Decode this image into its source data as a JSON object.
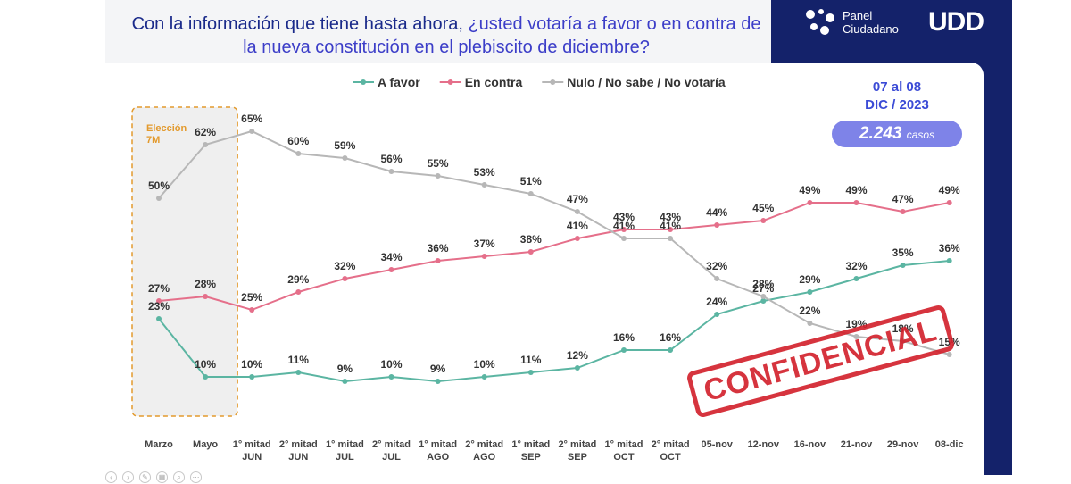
{
  "title_part1": "Con la información que tiene hasta ahora, ",
  "title_part2": "¿usted votaría a favor o en contra de la nueva constitución en el plebiscito de diciembre?",
  "logo": {
    "line1": "Panel",
    "line2": "Ciudadano",
    "mark": "UDD"
  },
  "date_range": {
    "line1": "07 al 08",
    "line2": "DIC / 2023"
  },
  "cases": {
    "value": "2.243",
    "unit": "casos"
  },
  "stamp": "CONFIDENCIAL",
  "chart_data": {
    "type": "line",
    "title": "Con la información que tiene hasta ahora, ¿usted votaría a favor o en contra de la nueva constitución en el plebiscito de diciembre?",
    "categories": [
      [
        "Marzo"
      ],
      [
        "Mayo"
      ],
      [
        "1° mitad",
        "JUN"
      ],
      [
        "2° mitad",
        "JUN"
      ],
      [
        "1° mitad",
        "JUL"
      ],
      [
        "2° mitad",
        "JUL"
      ],
      [
        "1° mitad",
        "AGO"
      ],
      [
        "2° mitad",
        "AGO"
      ],
      [
        "1° mitad",
        "SEP"
      ],
      [
        "2° mitad",
        "SEP"
      ],
      [
        "1° mitad",
        "OCT"
      ],
      [
        "2° mitad",
        "OCT"
      ],
      [
        "05-nov"
      ],
      [
        "12-nov"
      ],
      [
        "16-nov"
      ],
      [
        "21-nov"
      ],
      [
        "29-nov"
      ],
      [
        "08-dic"
      ]
    ],
    "series": [
      {
        "name": "A favor",
        "color": "#5bb5a2",
        "values": [
          23,
          10,
          10,
          11,
          9,
          10,
          9,
          10,
          11,
          12,
          16,
          16,
          24,
          27,
          29,
          32,
          35,
          36
        ]
      },
      {
        "name": "En contra",
        "color": "#e56f8a",
        "values": [
          27,
          28,
          25,
          29,
          32,
          34,
          36,
          37,
          38,
          41,
          43,
          43,
          44,
          45,
          49,
          49,
          47,
          49
        ]
      },
      {
        "name": "Nulo / No sabe / No votaría",
        "color": "#b7b7b7",
        "values": [
          50,
          62,
          65,
          60,
          59,
          56,
          55,
          53,
          51,
          47,
          41,
          41,
          32,
          28,
          22,
          19,
          18,
          15
        ]
      }
    ],
    "annotation": {
      "text_line1": "Elección",
      "text_line2": "7M"
    },
    "label_suffix": "%",
    "ylim": [
      0,
      70
    ],
    "legend_position": "top-center"
  }
}
